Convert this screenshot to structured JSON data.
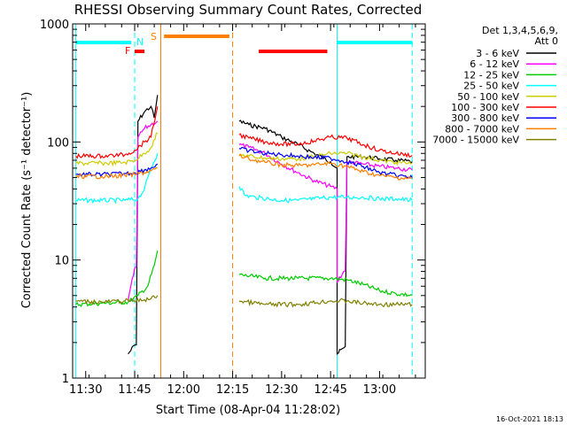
{
  "chart_data": {
    "type": "line",
    "title": "RHESSI Observing Summary Count Rates, Corrected",
    "xlabel": "Start Time (08-Apr-04 11:28:02)",
    "ylabel": "Corrected Count Rate (s⁻¹ detector⁻¹)",
    "yscale": "log",
    "ylim": [
      1,
      1000
    ],
    "xlim": [
      "11:26",
      "13:14"
    ],
    "x_ticks": [
      "11:30",
      "11:45",
      "12:00",
      "12:15",
      "12:30",
      "12:45",
      "13:00"
    ],
    "y_ticks": [
      "1",
      "10",
      "100",
      "1000"
    ],
    "legend_header": [
      "Det 1,3,4,5,6,9,",
      "Att 0"
    ],
    "footer": "16-Oct-2021 18:13",
    "flag_labels": {
      "F": "F",
      "N": "N",
      "S": "S"
    },
    "flags": [
      {
        "label": "N",
        "color": "#00ffff",
        "start": "11:27",
        "end": "11:44"
      },
      {
        "label": "N",
        "color": "#00ffff",
        "start": "12:47",
        "end": "13:10"
      },
      {
        "label": "F",
        "color": "#ff0000",
        "start": "11:45",
        "end": "11:48"
      },
      {
        "label": "F",
        "color": "#ff0000",
        "start": "12:23",
        "end": "12:44"
      },
      {
        "label": "S",
        "color": "#ff7f00",
        "start": "11:54",
        "end": "12:14"
      }
    ],
    "boundaries": [
      {
        "color": "#00ffff",
        "style": "solid",
        "x": "11:27"
      },
      {
        "color": "#00ffff",
        "style": "dashed",
        "x": "11:45"
      },
      {
        "color": "#ff7f00",
        "style": "solid",
        "x": "11:53"
      },
      {
        "color": "#ff7f00",
        "style": "dashed",
        "x": "12:15"
      },
      {
        "color": "#00ffff",
        "style": "solid",
        "x": "12:47"
      },
      {
        "color": "#00ffff",
        "style": "dashed",
        "x": "13:10"
      }
    ],
    "gaps": [
      [
        "11:53",
        "12:17"
      ]
    ],
    "series": [
      {
        "name": "3 - 6 keV",
        "color": "#000000",
        "points": [
          [
            "11:43",
            1.6
          ],
          [
            "11:45",
            1.9
          ],
          [
            "11:46",
            150
          ],
          [
            "11:48",
            180
          ],
          [
            "11:50",
            200
          ],
          [
            "11:51",
            160
          ],
          [
            "11:52",
            250
          ],
          [
            "12:17",
            150
          ],
          [
            "12:20",
            140
          ],
          [
            "12:25",
            130
          ],
          [
            "12:30",
            110
          ],
          [
            "12:35",
            95
          ],
          [
            "12:40",
            80
          ],
          [
            "12:45",
            68
          ],
          [
            "12:47",
            60
          ],
          [
            "12:47",
            1.6
          ],
          [
            "12:49",
            1.8
          ],
          [
            "12:50",
            75
          ],
          [
            "12:55",
            75
          ],
          [
            "13:00",
            72
          ],
          [
            "13:05",
            70
          ],
          [
            "13:10",
            68
          ]
        ]
      },
      {
        "name": "6 - 12 keV",
        "color": "#ff00ff",
        "points": [
          [
            "11:43",
            4.5
          ],
          [
            "11:45",
            8.5
          ],
          [
            "11:46",
            110
          ],
          [
            "11:48",
            130
          ],
          [
            "11:50",
            140
          ],
          [
            "11:52",
            150
          ],
          [
            "12:17",
            95
          ],
          [
            "12:20",
            90
          ],
          [
            "12:25",
            80
          ],
          [
            "12:30",
            65
          ],
          [
            "12:35",
            55
          ],
          [
            "12:40",
            47
          ],
          [
            "12:45",
            42
          ],
          [
            "12:47",
            40
          ],
          [
            "12:47",
            6.5
          ],
          [
            "12:49",
            8
          ],
          [
            "12:50",
            68
          ],
          [
            "12:55",
            65
          ],
          [
            "13:00",
            62
          ],
          [
            "13:05",
            60
          ],
          [
            "13:10",
            58
          ]
        ]
      },
      {
        "name": "12 - 25 keV",
        "color": "#00cc00",
        "points": [
          [
            "11:27",
            4.2
          ],
          [
            "11:35",
            4.3
          ],
          [
            "11:43",
            4.4
          ],
          [
            "11:46",
            5
          ],
          [
            "11:49",
            6
          ],
          [
            "11:51",
            9
          ],
          [
            "11:52",
            12
          ],
          [
            "12:17",
            7.5
          ],
          [
            "12:25",
            7
          ],
          [
            "12:35",
            7
          ],
          [
            "12:45",
            7
          ],
          [
            "12:50",
            6.8
          ],
          [
            "12:55",
            6.2
          ],
          [
            "13:00",
            5.5
          ],
          [
            "13:05",
            5.2
          ],
          [
            "13:10",
            5
          ]
        ]
      },
      {
        "name": "25 - 50 keV",
        "color": "#00ffff",
        "points": [
          [
            "11:27",
            32
          ],
          [
            "11:35",
            32
          ],
          [
            "11:42",
            32
          ],
          [
            "11:46",
            33
          ],
          [
            "11:48",
            40
          ],
          [
            "11:50",
            60
          ],
          [
            "11:52",
            80
          ],
          [
            "12:17",
            42
          ],
          [
            "12:19",
            35
          ],
          [
            "12:22",
            34
          ],
          [
            "12:30",
            32
          ],
          [
            "12:35",
            32
          ],
          [
            "12:40",
            33
          ],
          [
            "12:45",
            34
          ],
          [
            "12:50",
            34
          ],
          [
            "12:55",
            34
          ],
          [
            "13:00",
            33
          ],
          [
            "13:05",
            33
          ],
          [
            "13:10",
            32
          ]
        ]
      },
      {
        "name": "50 - 100 keV",
        "color": "#cccc00",
        "points": [
          [
            "11:27",
            66
          ],
          [
            "11:35",
            66
          ],
          [
            "11:42",
            67
          ],
          [
            "11:45",
            70
          ],
          [
            "11:48",
            80
          ],
          [
            "11:50",
            90
          ],
          [
            "11:52",
            120
          ],
          [
            "12:17",
            78
          ],
          [
            "12:20",
            76
          ],
          [
            "12:25",
            73
          ],
          [
            "12:30",
            72
          ],
          [
            "12:35",
            72
          ],
          [
            "12:40",
            75
          ],
          [
            "12:45",
            80
          ],
          [
            "12:50",
            80
          ],
          [
            "12:55",
            75
          ],
          [
            "13:00",
            70
          ],
          [
            "13:05",
            67
          ],
          [
            "13:10",
            66
          ]
        ]
      },
      {
        "name": "100 - 300 keV",
        "color": "#ff0000",
        "points": [
          [
            "11:27",
            76
          ],
          [
            "11:35",
            76
          ],
          [
            "11:42",
            78
          ],
          [
            "11:45",
            85
          ],
          [
            "11:48",
            100
          ],
          [
            "11:50",
            110
          ],
          [
            "11:52",
            200
          ],
          [
            "12:17",
            115
          ],
          [
            "12:20",
            108
          ],
          [
            "12:25",
            100
          ],
          [
            "12:30",
            96
          ],
          [
            "12:35",
            96
          ],
          [
            "12:40",
            102
          ],
          [
            "12:45",
            110
          ],
          [
            "12:50",
            108
          ],
          [
            "12:55",
            95
          ],
          [
            "13:00",
            85
          ],
          [
            "13:05",
            80
          ],
          [
            "13:10",
            77
          ]
        ]
      },
      {
        "name": "300 - 800 keV",
        "color": "#0000ff",
        "points": [
          [
            "11:27",
            53
          ],
          [
            "11:35",
            53
          ],
          [
            "11:42",
            54
          ],
          [
            "11:45",
            55
          ],
          [
            "11:48",
            58
          ],
          [
            "11:50",
            60
          ],
          [
            "11:52",
            65
          ],
          [
            "12:17",
            88
          ],
          [
            "12:20",
            84
          ],
          [
            "12:25",
            80
          ],
          [
            "12:30",
            78
          ],
          [
            "12:35",
            76
          ],
          [
            "12:40",
            74
          ],
          [
            "12:45",
            73
          ],
          [
            "12:50",
            68
          ],
          [
            "12:55",
            62
          ],
          [
            "13:00",
            55
          ],
          [
            "13:05",
            52
          ],
          [
            "13:10",
            50
          ]
        ]
      },
      {
        "name": "800 - 7000 keV",
        "color": "#ff7f00",
        "points": [
          [
            "11:27",
            51
          ],
          [
            "11:35",
            51
          ],
          [
            "11:42",
            52
          ],
          [
            "11:45",
            53
          ],
          [
            "11:48",
            55
          ],
          [
            "11:50",
            57
          ],
          [
            "11:52",
            60
          ],
          [
            "12:17",
            76
          ],
          [
            "12:20",
            72
          ],
          [
            "12:25",
            67
          ],
          [
            "12:30",
            64
          ],
          [
            "12:35",
            63
          ],
          [
            "12:40",
            64
          ],
          [
            "12:45",
            66
          ],
          [
            "12:50",
            62
          ],
          [
            "12:55",
            56
          ],
          [
            "13:00",
            52
          ],
          [
            "13:05",
            50
          ],
          [
            "13:10",
            49
          ]
        ]
      },
      {
        "name": "7000 - 15000 keV",
        "color": "#808000",
        "points": [
          [
            "11:27",
            4.5
          ],
          [
            "11:35",
            4.4
          ],
          [
            "11:42",
            4.5
          ],
          [
            "11:45",
            4.5
          ],
          [
            "11:48",
            4.6
          ],
          [
            "11:50",
            4.7
          ],
          [
            "11:52",
            5
          ],
          [
            "12:17",
            4.5
          ],
          [
            "12:25",
            4.2
          ],
          [
            "12:35",
            4.2
          ],
          [
            "12:45",
            4.5
          ],
          [
            "12:50",
            4.5
          ],
          [
            "12:55",
            4.3
          ],
          [
            "13:00",
            4.2
          ],
          [
            "13:05",
            4.2
          ],
          [
            "13:10",
            4.2
          ]
        ]
      }
    ]
  }
}
